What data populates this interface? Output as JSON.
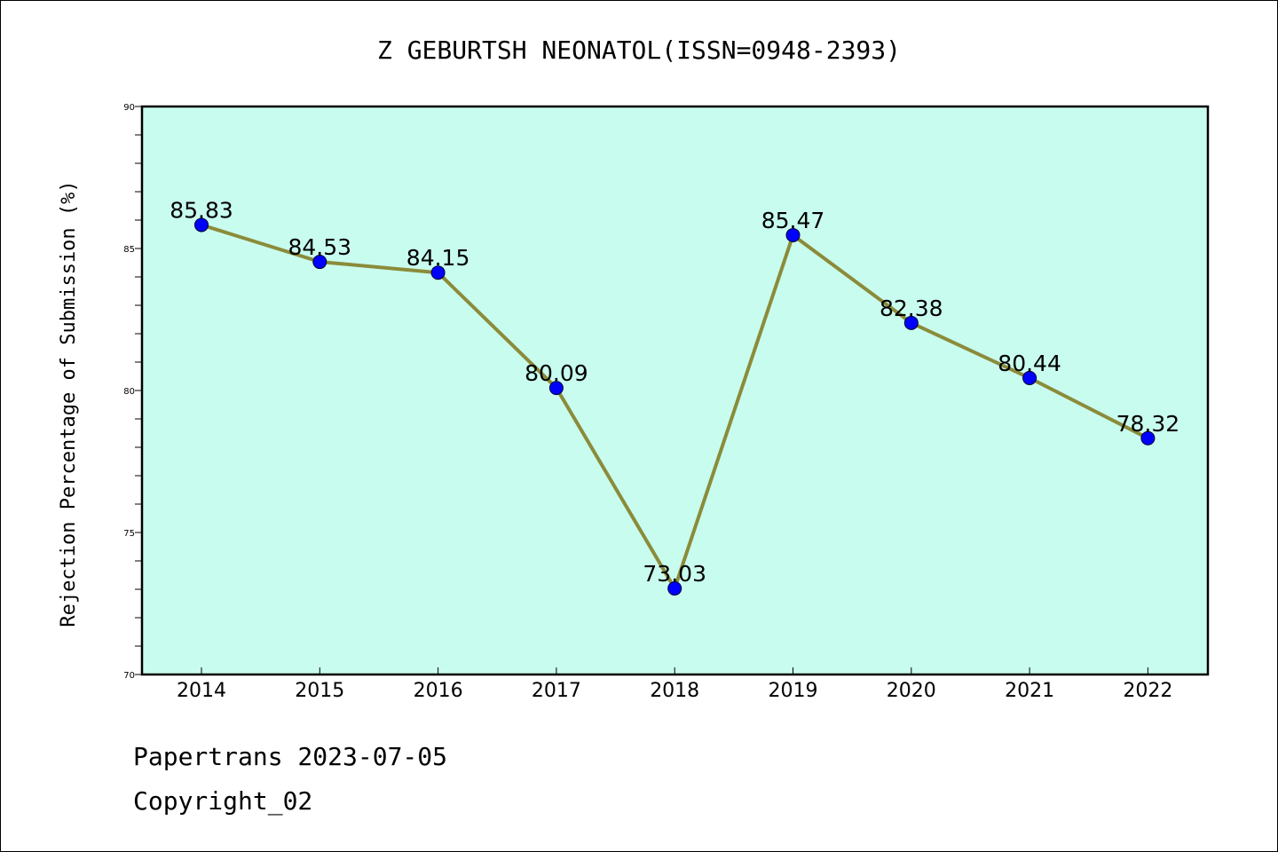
{
  "chart_data": {
    "type": "line",
    "title": "Z GEBURTSH NEONATOL(ISSN=0948-2393)",
    "xlabel": "",
    "ylabel": "Rejection Percentage of Submission (%)",
    "categories": [
      "2014",
      "2015",
      "2016",
      "2017",
      "2018",
      "2019",
      "2020",
      "2021",
      "2022"
    ],
    "values": [
      85.83,
      84.53,
      84.15,
      80.09,
      73.03,
      85.47,
      82.38,
      80.44,
      78.32
    ],
    "value_labels": [
      "85.83",
      "84.53",
      "84.15",
      "80.09",
      "73.03",
      "85.47",
      "82.38",
      "80.44",
      "78.32"
    ],
    "ylim": [
      70,
      90
    ],
    "yticks": [
      "70",
      "75",
      "80",
      "85",
      "90"
    ],
    "grid": false,
    "colors": {
      "plot_background": "#c8fcee",
      "line": "#8b8b3a",
      "marker": "#0000ff"
    }
  },
  "footer": {
    "line1": "Papertrans 2023-07-05",
    "line2": "Copyright_02"
  }
}
